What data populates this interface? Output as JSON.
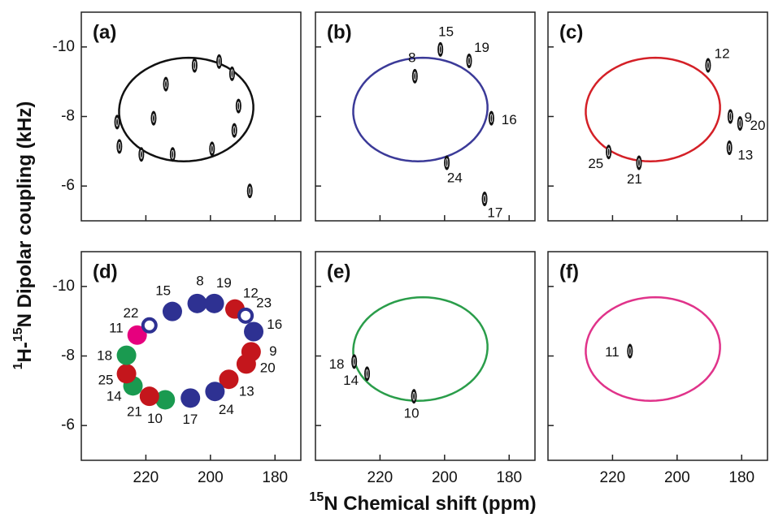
{
  "figure": {
    "xlabel_parts": [
      "15",
      "N Chemical shift (ppm)"
    ],
    "ylabel_parts": [
      "1",
      "H-",
      "15",
      "N Dipolar coupling (kHz)"
    ]
  },
  "chart_data": [
    {
      "type": "scatter",
      "title": "(a)",
      "xlim": [
        240,
        172
      ],
      "ylim": [
        -5,
        -11
      ],
      "xticks": [
        220,
        200,
        180
      ],
      "yticks": [
        -10,
        -8,
        -6
      ],
      "show_xticklabels": false,
      "show_yticklabels": true,
      "wheel": {
        "color": "#111111",
        "center_x": 207.5,
        "center_y": -8.2,
        "a_x": -19.8,
        "a_y": -0.51,
        "b_x": 6.4,
        "b_y": -1.4
      },
      "x": [
        228.9,
        228.2,
        221.4,
        211.7,
        199.5,
        192.6,
        191.3,
        193.3,
        204.9,
        213.8,
        217.6,
        187.8,
        197.3
      ],
      "values": [
        -7.84,
        -7.14,
        -6.91,
        -6.91,
        -7.07,
        -7.6,
        -8.3,
        -9.23,
        -9.47,
        -8.93,
        -7.95,
        -5.86,
        -9.58
      ]
    },
    {
      "type": "scatter",
      "title": "(b)",
      "xlim": [
        240,
        172
      ],
      "ylim": [
        -5,
        -11
      ],
      "xticks": [
        220,
        200,
        180
      ],
      "yticks": [
        -10,
        -8,
        -6
      ],
      "show_xticklabels": false,
      "show_yticklabels": false,
      "wheel": {
        "color": "#3b3a98",
        "center_x": 207.5,
        "center_y": -8.2,
        "a_x": -19.8,
        "a_y": -0.51,
        "b_x": 6.4,
        "b_y": -1.4
      },
      "x": [
        201.3,
        209.2,
        192.4,
        185.5,
        199.3,
        187.6
      ],
      "values": [
        -9.93,
        -9.16,
        -9.6,
        -7.95,
        -6.67,
        -5.63
      ],
      "labels": [
        "15",
        "8",
        "19",
        "16",
        "24",
        "17"
      ]
    },
    {
      "type": "scatter",
      "title": "(c)",
      "xlim": [
        240,
        172
      ],
      "ylim": [
        -5,
        -11
      ],
      "xticks": [
        220,
        200,
        180
      ],
      "yticks": [
        -10,
        -8,
        -6
      ],
      "show_xticklabels": false,
      "show_yticklabels": false,
      "wheel": {
        "color": "#d42027",
        "center_x": 207.5,
        "center_y": -8.2,
        "a_x": -19.8,
        "a_y": -0.51,
        "b_x": 6.4,
        "b_y": -1.4
      },
      "x": [
        190.4,
        183.5,
        180.5,
        183.8,
        221.2,
        211.8
      ],
      "values": [
        -9.47,
        -8.0,
        -7.8,
        -7.1,
        -6.98,
        -6.67
      ],
      "labels": [
        "12",
        "9",
        "20",
        "13",
        "25",
        "21"
      ]
    },
    {
      "type": "wheel-map",
      "title": "(d)",
      "xlim": [
        240,
        172
      ],
      "ylim": [
        -5,
        -11
      ],
      "xticks": [
        220,
        200,
        180
      ],
      "yticks": [
        -10,
        -8,
        -6
      ],
      "show_xticklabels": true,
      "show_yticklabels": true,
      "x": [
        204.1,
        198.8,
        211.8,
        192.4,
        189.1,
        186.6,
        187.4,
        188.9,
        194.3,
        198.6,
        206.2,
        214.0,
        218.9,
        224.0,
        226.0,
        226.0,
        222.7,
        218.9
      ],
      "values": [
        -9.51,
        -9.51,
        -9.28,
        -9.35,
        -9.16,
        -8.7,
        -8.12,
        -7.77,
        -7.33,
        -6.98,
        -6.79,
        -6.74,
        -6.84,
        -7.14,
        -7.49,
        -8.02,
        -8.6,
        -8.88
      ],
      "labels": [
        "8",
        "19",
        "15",
        "12",
        "23",
        "16",
        "9",
        "20",
        "13",
        "24",
        "17",
        "10",
        "21",
        "14",
        "25",
        "18",
        "11",
        "22"
      ],
      "colors": [
        "#2e3192",
        "#2e3192",
        "#2e3192",
        "#c4161c",
        "#2e3192",
        "#2e3192",
        "#c4161c",
        "#c4161c",
        "#c4161c",
        "#2e3192",
        "#2e3192",
        "#1a9a50",
        "#c4161c",
        "#1a9a50",
        "#c4161c",
        "#1a9a50",
        "#e6007e",
        "#2e3192"
      ],
      "open": [
        false,
        false,
        false,
        false,
        true,
        false,
        false,
        false,
        false,
        false,
        false,
        false,
        false,
        false,
        false,
        false,
        false,
        true
      ]
    },
    {
      "type": "scatter",
      "title": "(e)",
      "xlim": [
        240,
        172
      ],
      "ylim": [
        -5,
        -11
      ],
      "xticks": [
        220,
        200,
        180
      ],
      "yticks": [
        -10,
        -8,
        -6
      ],
      "show_xticklabels": true,
      "show_yticklabels": false,
      "wheel": {
        "color": "#2a9d4a",
        "center_x": 207.5,
        "center_y": -8.2,
        "a_x": -19.8,
        "a_y": -0.51,
        "b_x": 6.4,
        "b_y": -1.4
      },
      "x": [
        228.0,
        224.0,
        209.5
      ],
      "values": [
        -7.84,
        -7.49,
        -6.84
      ],
      "labels": [
        "18",
        "14",
        "10"
      ]
    },
    {
      "type": "scatter",
      "title": "(f)",
      "xlim": [
        240,
        172
      ],
      "ylim": [
        -5,
        -11
      ],
      "xticks": [
        220,
        200,
        180
      ],
      "yticks": [
        -10,
        -8,
        -6
      ],
      "show_xticklabels": true,
      "show_yticklabels": false,
      "wheel": {
        "color": "#e0338a",
        "center_x": 207.5,
        "center_y": -8.2,
        "a_x": -19.8,
        "a_y": -0.51,
        "b_x": 6.4,
        "b_y": -1.4
      },
      "x": [
        214.6
      ],
      "values": [
        -8.14
      ],
      "labels": [
        "11"
      ]
    }
  ]
}
